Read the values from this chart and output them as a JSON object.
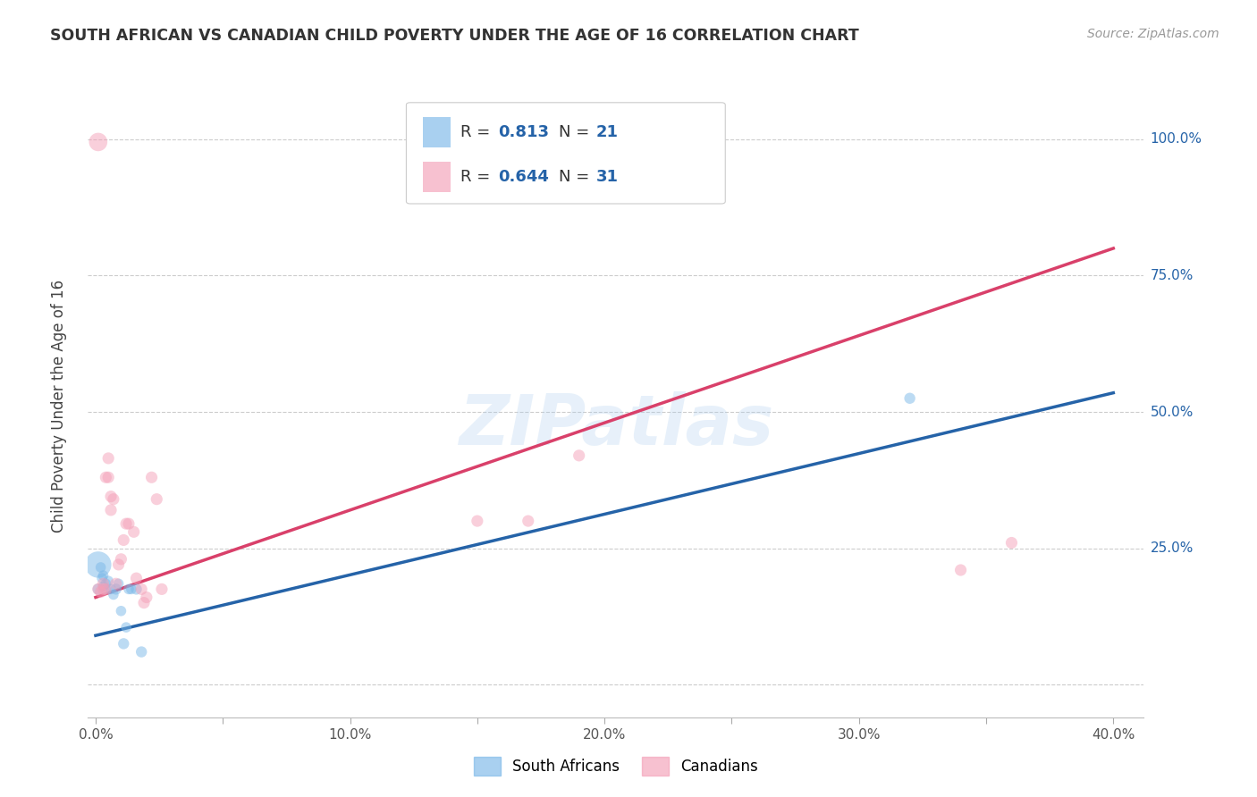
{
  "title": "SOUTH AFRICAN VS CANADIAN CHILD POVERTY UNDER THE AGE OF 16 CORRELATION CHART",
  "source": "Source: ZipAtlas.com",
  "ylabel": "Child Poverty Under the Age of 16",
  "xlim": [
    -0.003,
    0.412
  ],
  "ylim": [
    -0.06,
    1.08
  ],
  "xtick_pos": [
    0.0,
    0.05,
    0.1,
    0.15,
    0.2,
    0.25,
    0.3,
    0.35,
    0.4
  ],
  "xticklabels": [
    "0.0%",
    "",
    "10.0%",
    "",
    "20.0%",
    "",
    "30.0%",
    "",
    "40.0%"
  ],
  "ytick_positions": [
    0.0,
    0.25,
    0.5,
    0.75,
    1.0
  ],
  "ytick_labels": [
    "",
    "25.0%",
    "50.0%",
    "75.0%",
    "100.0%"
  ],
  "blue_fill": "#7BB8E8",
  "pink_fill": "#F4A0B8",
  "blue_line_color": "#2563A8",
  "pink_line_color": "#D9406A",
  "r_text_color": "#2563A8",
  "n_text_color": "#2563A8",
  "legend_r1_val": "0.813",
  "legend_n1_val": "21",
  "legend_r2_val": "0.644",
  "legend_n2_val": "31",
  "watermark": "ZIPatlas",
  "legend_label_blue": "South Africans",
  "legend_label_pink": "Canadians",
  "blue_scatter_x": [
    0.001,
    0.002,
    0.0025,
    0.003,
    0.003,
    0.004,
    0.004,
    0.005,
    0.006,
    0.007,
    0.008,
    0.009,
    0.01,
    0.011,
    0.012,
    0.013,
    0.014,
    0.016,
    0.018,
    0.32,
    0.001
  ],
  "blue_scatter_y": [
    0.175,
    0.215,
    0.195,
    0.18,
    0.2,
    0.185,
    0.175,
    0.19,
    0.175,
    0.165,
    0.175,
    0.185,
    0.135,
    0.075,
    0.105,
    0.175,
    0.175,
    0.175,
    0.06,
    0.525,
    0.22
  ],
  "blue_scatter_size": [
    80,
    70,
    70,
    70,
    70,
    70,
    70,
    70,
    70,
    70,
    80,
    70,
    70,
    80,
    70,
    70,
    70,
    80,
    80,
    80,
    450
  ],
  "pink_scatter_x": [
    0.001,
    0.002,
    0.003,
    0.003,
    0.004,
    0.004,
    0.005,
    0.005,
    0.006,
    0.006,
    0.007,
    0.008,
    0.009,
    0.01,
    0.011,
    0.012,
    0.013,
    0.015,
    0.016,
    0.018,
    0.019,
    0.02,
    0.022,
    0.024,
    0.026,
    0.15,
    0.17,
    0.19,
    0.34,
    0.36,
    0.001
  ],
  "pink_scatter_y": [
    0.175,
    0.17,
    0.175,
    0.185,
    0.175,
    0.38,
    0.415,
    0.38,
    0.345,
    0.32,
    0.34,
    0.185,
    0.22,
    0.23,
    0.265,
    0.295,
    0.295,
    0.28,
    0.195,
    0.175,
    0.15,
    0.16,
    0.38,
    0.34,
    0.175,
    0.3,
    0.3,
    0.42,
    0.21,
    0.26,
    0.995
  ],
  "pink_scatter_size": [
    90,
    90,
    90,
    90,
    90,
    90,
    90,
    90,
    90,
    90,
    90,
    90,
    90,
    90,
    90,
    90,
    90,
    90,
    90,
    90,
    90,
    90,
    90,
    90,
    90,
    90,
    90,
    90,
    90,
    90,
    220
  ],
  "blue_line_x": [
    0.0,
    0.4
  ],
  "blue_line_y": [
    0.09,
    0.535
  ],
  "pink_line_x": [
    0.0,
    0.4
  ],
  "pink_line_y": [
    0.16,
    0.8
  ],
  "background_color": "#FFFFFF",
  "grid_color": "#CCCCCC",
  "title_fontsize": 12.5,
  "source_fontsize": 10,
  "tick_fontsize": 11,
  "legend_fontsize": 13
}
